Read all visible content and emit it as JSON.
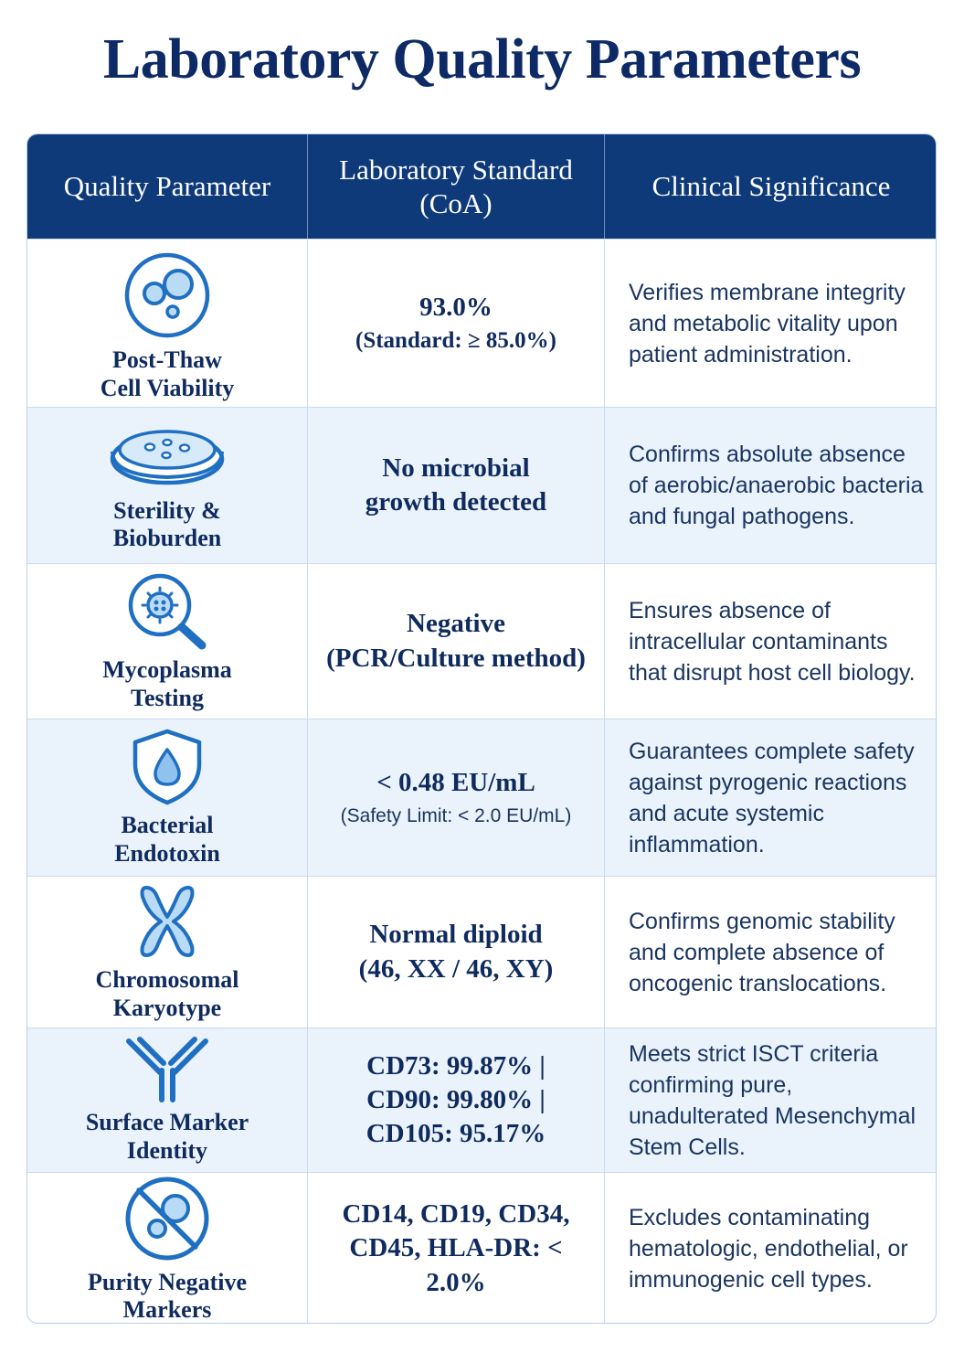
{
  "title": "Laboratory Quality Parameters",
  "headers": [
    "Quality Parameter",
    "Laboratory Standard\n(CoA)",
    "Clinical Significance"
  ],
  "rows": [
    {
      "icon": "cell-viability-icon",
      "parameter": "Post-Thaw\nCell Viability",
      "standard": "93.0%",
      "standard_note": "(Standard: ≥ 85.0%)",
      "significance": "Verifies membrane integrity and metabolic vitality upon patient administration."
    },
    {
      "icon": "petri-dish-icon",
      "parameter": "Sterility &\nBioburden",
      "standard": "No microbial\ngrowth detected",
      "standard_note": "",
      "significance": "Confirms absolute absence of aerobic/anaerobic bacteria and fungal pathogens."
    },
    {
      "icon": "magnifier-microbe-icon",
      "parameter": "Mycoplasma\nTesting",
      "standard": "Negative\n(PCR/Culture method)",
      "standard_note": "",
      "significance": "Ensures absence of intracellular contaminants that disrupt host cell biology."
    },
    {
      "icon": "shield-drop-icon",
      "parameter": "Bacterial\nEndotoxin",
      "standard": "< 0.48 EU/mL",
      "standard_note": "(Safety Limit: < 2.0 EU/mL)",
      "significance": "Guarantees complete safety against pyrogenic reactions and acute systemic inflammation."
    },
    {
      "icon": "chromosome-icon",
      "parameter": "Chromosomal\nKaryotype",
      "standard": "Normal diploid\n(46, XX / 46, XY)",
      "standard_note": "",
      "significance": "Confirms genomic stability and complete absence of oncogenic translocations."
    },
    {
      "icon": "antibody-icon",
      "parameter": "Surface Marker\nIdentity",
      "standard": "CD73: 99.87% |\nCD90: 99.80% |\nCD105: 95.17%",
      "standard_note": "",
      "significance": "Meets strict ISCT criteria confirming pure, unadulterated Mesenchymal Stem Cells."
    },
    {
      "icon": "no-cells-icon",
      "parameter": "Purity Negative\nMarkers",
      "standard": "CD14, CD19, CD34,\nCD45, HLA-DR: < 2.0%",
      "standard_note": "",
      "significance": "Excludes contaminating hematologic, endothelial, or immunogenic cell types."
    }
  ]
}
